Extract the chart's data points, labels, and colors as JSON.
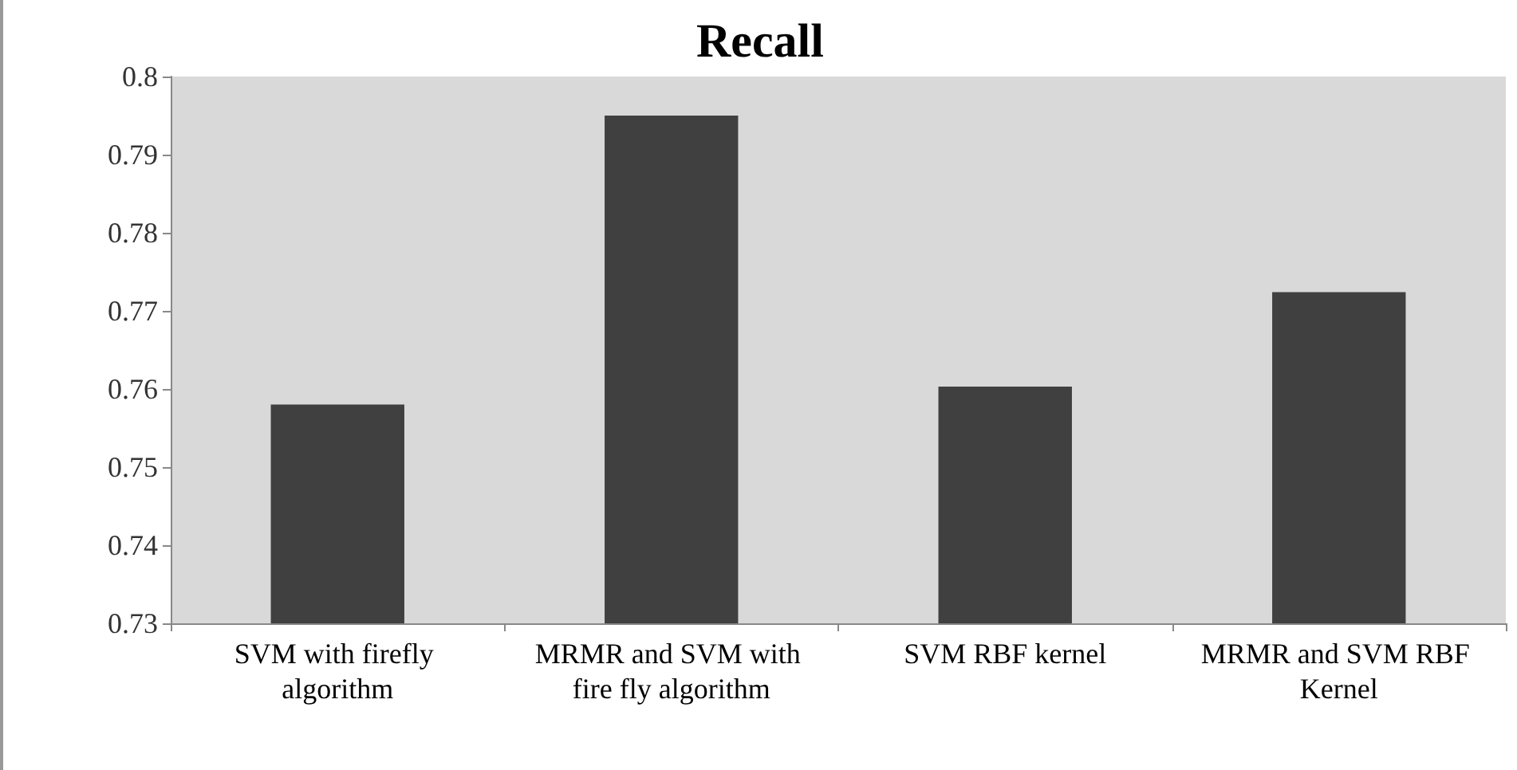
{
  "chart_data": {
    "type": "bar",
    "title": "Recall",
    "categories": [
      "SVM with firefly algorithm",
      "MRMR and SVM with fire fly algorithm",
      "SVM RBF kernel",
      "MRMR and SVM RBF Kernel"
    ],
    "values": [
      0.758,
      0.795,
      0.7603,
      0.7724
    ],
    "color": "#404040",
    "ylim": [
      0.73,
      0.8
    ],
    "yticks": [
      0.73,
      0.74,
      0.75,
      0.76,
      0.77,
      0.78,
      0.79,
      0.8
    ],
    "grid": false
  }
}
